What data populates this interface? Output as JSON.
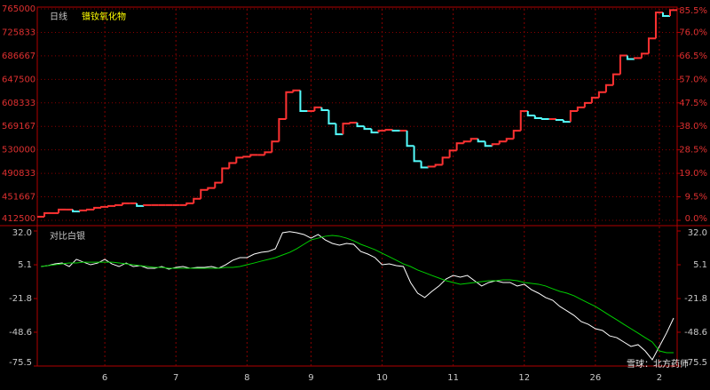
{
  "chart_data": [
    {
      "type": "step",
      "title": "日线",
      "series": [
        {
          "name": "镨钕氧化物",
          "up_color": "#ff3232",
          "down_color": "#54fcfc",
          "values": [
            418500,
            424500,
            424500,
            430400,
            430400,
            427400,
            428900,
            430400,
            433400,
            434900,
            436400,
            437900,
            440900,
            440900,
            436400,
            437900,
            437900,
            437900,
            437900,
            437900,
            437900,
            440900,
            448400,
            463300,
            466300,
            475200,
            499100,
            508100,
            517100,
            518600,
            521500,
            521500,
            526000,
            543900,
            581300,
            626100,
            629100,
            594700,
            594700,
            600700,
            596200,
            573800,
            555900,
            573800,
            575300,
            569300,
            564900,
            558900,
            561900,
            563400,
            561900,
            561900,
            536500,
            511100,
            500600,
            502100,
            505100,
            517100,
            529000,
            541000,
            543900,
            548400,
            543900,
            536500,
            539500,
            543900,
            548400,
            561900,
            594700,
            587300,
            582800,
            581300,
            581300,
            579800,
            576800,
            594700,
            600700,
            608200,
            617100,
            626100,
            638000,
            656000,
            687300,
            681400,
            682900,
            690300,
            715700,
            759000,
            753100,
            763000
          ]
        }
      ],
      "ylim": [
        412500,
        765000
      ],
      "yticks": [
        412500,
        451667,
        490833,
        530000,
        569167,
        608333,
        647500,
        686667,
        725833,
        765000
      ],
      "y2lim": [
        0,
        85.5
      ],
      "y2ticks": [
        {
          "value": 0,
          "label": "0.0%"
        },
        {
          "value": 9.5,
          "label": "9.5%"
        },
        {
          "value": 19,
          "label": "19.0%"
        },
        {
          "value": 28.5,
          "label": "28.5%"
        },
        {
          "value": 38,
          "label": "38.0%"
        },
        {
          "value": 47.5,
          "label": "47.5%"
        },
        {
          "value": 57,
          "label": "57.0%"
        },
        {
          "value": 66.5,
          "label": "66.5%"
        },
        {
          "value": 76,
          "label": "76.0%"
        },
        {
          "value": 85.5,
          "label": "85.5%"
        }
      ],
      "grid": true
    },
    {
      "type": "line",
      "title": "对比白银",
      "categories": [
        null,
        null,
        null,
        null,
        null,
        null,
        null,
        null,
        null,
        "6",
        null,
        null,
        null,
        null,
        null,
        null,
        null,
        null,
        null,
        "7",
        null,
        null,
        null,
        null,
        null,
        null,
        null,
        null,
        null,
        "8",
        null,
        null,
        null,
        null,
        null,
        null,
        null,
        null,
        "9",
        null,
        null,
        null,
        null,
        null,
        null,
        null,
        null,
        null,
        "10",
        null,
        null,
        null,
        null,
        null,
        null,
        null,
        null,
        null,
        "11",
        null,
        null,
        null,
        null,
        null,
        null,
        null,
        null,
        null,
        "12",
        null,
        null,
        null,
        null,
        null,
        null,
        null,
        null,
        null,
        "26",
        null,
        null,
        null,
        null,
        null,
        null,
        null,
        null,
        "2",
        null,
        null
      ],
      "series": [
        {
          "color": "#ffffff",
          "values": [
            3.7,
            4.4,
            5.8,
            6.5,
            3.7,
            9.4,
            7.2,
            5.1,
            6.5,
            9.4,
            5.8,
            3.7,
            6.5,
            3.7,
            4.4,
            2.3,
            2.3,
            3.7,
            1.6,
            3.0,
            3.7,
            2.3,
            3.0,
            3.0,
            3.7,
            2.3,
            5.1,
            8.7,
            10.8,
            10.8,
            13.6,
            15.0,
            15.7,
            17.9,
            30.6,
            31.5,
            30.6,
            29.2,
            26.3,
            29.2,
            24.9,
            22.1,
            20.7,
            22.1,
            21.4,
            15.7,
            13.6,
            10.8,
            5.1,
            5.8,
            4.4,
            3.7,
            -9.0,
            -17.5,
            -21.0,
            -16.1,
            -11.8,
            -6.2,
            -3.4,
            -4.8,
            -3.4,
            -7.6,
            -11.8,
            -9.0,
            -7.6,
            -9.0,
            -9.0,
            -11.8,
            -10.4,
            -14.7,
            -17.5,
            -21.0,
            -23.2,
            -28.1,
            -31.6,
            -35.2,
            -40.1,
            -42.3,
            -45.8,
            -47.2,
            -51.5,
            -52.9,
            -56.4,
            -59.9,
            -58.5,
            -63.5,
            -70.5,
            -59.9,
            -49.3,
            -37.3
          ]
        },
        {
          "color": "#00d000",
          "values": [
            3.7,
            4.4,
            5.1,
            5.8,
            6.5,
            6.5,
            7.2,
            7.2,
            7.2,
            7.2,
            7.2,
            6.5,
            5.8,
            5.1,
            4.4,
            3.7,
            3.0,
            3.0,
            2.3,
            2.3,
            2.3,
            2.3,
            2.3,
            2.3,
            2.3,
            2.3,
            3.0,
            3.0,
            3.7,
            5.1,
            6.5,
            8.0,
            9.4,
            10.8,
            12.9,
            15.0,
            17.9,
            21.4,
            24.9,
            26.3,
            27.8,
            28.5,
            27.8,
            26.3,
            24.2,
            21.4,
            19.3,
            17.1,
            14.3,
            11.5,
            8.7,
            5.8,
            3.7,
            0.9,
            -1.2,
            -3.4,
            -5.5,
            -7.6,
            -9.0,
            -10.4,
            -9.7,
            -9.0,
            -8.3,
            -7.6,
            -7.6,
            -6.9,
            -6.9,
            -7.6,
            -9.0,
            -9.7,
            -10.4,
            -11.8,
            -14.0,
            -16.1,
            -17.5,
            -19.6,
            -22.5,
            -25.3,
            -28.1,
            -31.6,
            -35.2,
            -38.7,
            -42.3,
            -45.8,
            -49.3,
            -52.9,
            -56.4,
            -63.5,
            -64.9,
            -64.9
          ]
        }
      ],
      "ylim": [
        -75.5,
        32
      ],
      "yticks": [
        {
          "value": 32,
          "label": "32.0"
        },
        5.1,
        -21.8,
        -48.6,
        -75.5
      ],
      "watermark": "雪球：北方药师"
    }
  ]
}
